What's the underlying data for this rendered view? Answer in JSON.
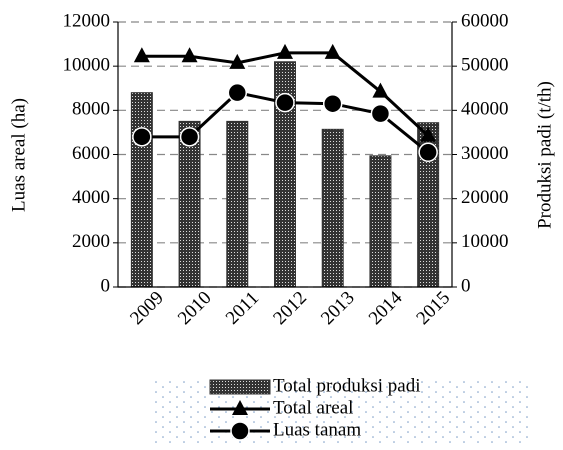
{
  "chart_data": {
    "type": "bar-line",
    "y_label": "Luas areal (ha)",
    "y2_label": "Produksi padi (t/th)",
    "categories": [
      "2009",
      "2010",
      "2011",
      "2012",
      "2013",
      "2014",
      "2015"
    ],
    "series": [
      {
        "name": "Total produksi padi",
        "type": "bar",
        "axis": "y2",
        "color": "#333333",
        "values": [
          44000,
          37500,
          37500,
          51000,
          35700,
          29700,
          37200
        ]
      },
      {
        "name": "Total areal",
        "type": "line",
        "marker": "triangle",
        "color": "#000000",
        "values": [
          10450,
          10450,
          10150,
          10600,
          10600,
          8850,
          6850
        ]
      },
      {
        "name": "Luas tanam",
        "type": "line",
        "marker": "circle",
        "color": "#000000",
        "values": [
          6800,
          6800,
          8800,
          8350,
          8300,
          7850,
          6100
        ]
      }
    ],
    "ylim": [
      0,
      12000
    ],
    "yticks": [
      0,
      2000,
      4000,
      6000,
      8000,
      10000,
      12000
    ],
    "y2lim": [
      0,
      60000
    ],
    "y2ticks": [
      0,
      10000,
      20000,
      30000,
      40000,
      50000,
      60000
    ],
    "grid": true,
    "legend": "bottom"
  }
}
